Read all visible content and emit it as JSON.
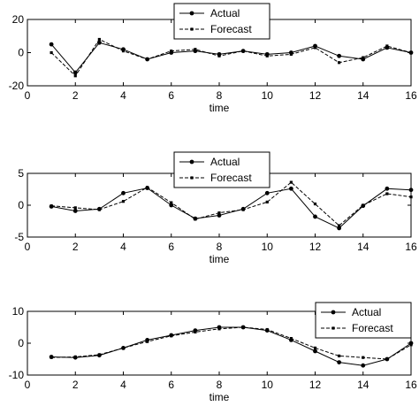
{
  "chart_data": [
    {
      "type": "line",
      "xlabel": "time",
      "ylabel": "",
      "xlim": [
        0,
        16
      ],
      "ylim": [
        -20,
        20
      ],
      "xticks": [
        0,
        2,
        4,
        6,
        8,
        10,
        12,
        14,
        16
      ],
      "yticks": [
        -20,
        0,
        20
      ],
      "grid": false,
      "legend_position": "top-center",
      "x": [
        1,
        2,
        3,
        4,
        5,
        6,
        7,
        8,
        9,
        10,
        11,
        12,
        13,
        14,
        15,
        16
      ],
      "series": [
        {
          "name": "Actual",
          "style": "solid-dot",
          "values": [
            5,
            -12,
            6,
            2,
            -4,
            0,
            1,
            -1,
            1,
            -1,
            0,
            4,
            -2,
            -4,
            3,
            0
          ]
        },
        {
          "name": "Forecast",
          "style": "dashed-square",
          "values": [
            0,
            -14,
            8,
            1,
            -4,
            1,
            2,
            -2,
            1,
            -2,
            -1,
            3,
            -6,
            -3,
            4,
            0
          ]
        }
      ]
    },
    {
      "type": "line",
      "xlabel": "time",
      "ylabel": "",
      "xlim": [
        0,
        16
      ],
      "ylim": [
        -5,
        5
      ],
      "xticks": [
        0,
        2,
        4,
        6,
        8,
        10,
        12,
        14,
        16
      ],
      "yticks": [
        -5,
        0,
        5
      ],
      "grid": false,
      "legend_position": "top-center",
      "x": [
        1,
        2,
        3,
        4,
        5,
        6,
        7,
        8,
        9,
        10,
        11,
        12,
        13,
        14,
        15,
        16
      ],
      "series": [
        {
          "name": "Actual",
          "style": "solid-dot",
          "values": [
            -0.2,
            -0.9,
            -0.6,
            1.9,
            2.7,
            0.0,
            -2.1,
            -1.6,
            -0.6,
            1.9,
            2.6,
            -1.8,
            -3.6,
            -0.1,
            2.6,
            2.4
          ]
        },
        {
          "name": "Forecast",
          "style": "dashed-square",
          "values": [
            -0.1,
            -0.4,
            -0.7,
            0.6,
            2.8,
            0.4,
            -2.2,
            -1.2,
            -0.7,
            0.5,
            3.6,
            0.2,
            -3.2,
            0.0,
            1.8,
            1.3
          ]
        }
      ]
    },
    {
      "type": "line",
      "xlabel": "time",
      "ylabel": "",
      "xlim": [
        0,
        16
      ],
      "ylim": [
        -10,
        10
      ],
      "xticks": [
        0,
        2,
        4,
        6,
        8,
        10,
        12,
        14,
        16
      ],
      "yticks": [
        -10,
        0,
        10
      ],
      "grid": false,
      "legend_position": "top-right",
      "x": [
        1,
        2,
        3,
        4,
        5,
        6,
        7,
        8,
        9,
        10,
        11,
        12,
        13,
        14,
        15,
        16
      ],
      "series": [
        {
          "name": "Actual",
          "style": "solid-dot",
          "values": [
            -4.3,
            -4.5,
            -3.8,
            -1.5,
            1.0,
            2.5,
            4.0,
            5.0,
            5.0,
            4.0,
            1.0,
            -2.5,
            -6.0,
            -7.0,
            -5.0,
            0.0
          ]
        },
        {
          "name": "Forecast",
          "style": "dashed-square",
          "values": [
            -4.5,
            -4.3,
            -3.6,
            -1.5,
            0.5,
            2.3,
            3.5,
            4.5,
            5.0,
            4.3,
            1.5,
            -1.5,
            -4.0,
            -4.5,
            -5.0,
            -0.5
          ]
        }
      ]
    }
  ]
}
